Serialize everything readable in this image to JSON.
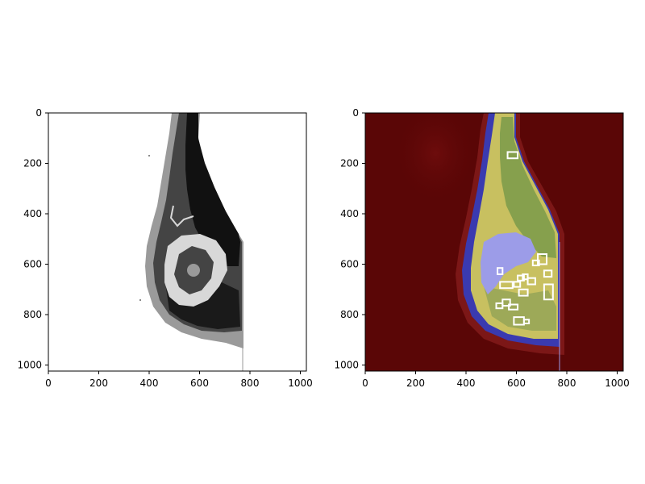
{
  "figure": {
    "panels": [
      {
        "name": "segmentation-map",
        "xaxis": {
          "ticks": [
            "0",
            "200",
            "400",
            "600",
            "800",
            "1000"
          ],
          "range": [
            0,
            1024
          ]
        },
        "yaxis": {
          "ticks": [
            "0",
            "200",
            "400",
            "600",
            "800",
            "1000"
          ],
          "range": [
            0,
            1024
          ],
          "inverted": true
        },
        "colors": {
          "background": "#ffffff",
          "light_gray": "#9a9a9a",
          "dark_gray": "#444444",
          "black": "#111111",
          "pale": "#d8d8d8"
        }
      },
      {
        "name": "heatmap-overlay",
        "xaxis": {
          "ticks": [
            "0",
            "200",
            "400",
            "600",
            "800",
            "1000"
          ],
          "range": [
            0,
            1024
          ]
        },
        "yaxis": {
          "ticks": [
            "0",
            "200",
            "400",
            "600",
            "800",
            "1000"
          ],
          "range": [
            0,
            1024
          ],
          "inverted": true
        },
        "colors": {
          "background": "#5a0606",
          "blue_rim": "#3a3ab0",
          "yellow": "#c8c060",
          "green": "#7a9a4a",
          "lavender": "#9c9ce8",
          "box": "#ffffff"
        },
        "boxes": [
          [
            565,
            155,
            40,
            25
          ],
          [
            685,
            560,
            35,
            40
          ],
          [
            665,
            585,
            25,
            20
          ],
          [
            710,
            625,
            30,
            25
          ],
          [
            605,
            645,
            25,
            20
          ],
          [
            625,
            640,
            20,
            20
          ],
          [
            645,
            655,
            30,
            25
          ],
          [
            525,
            615,
            20,
            25
          ],
          [
            535,
            670,
            50,
            25
          ],
          [
            590,
            670,
            25,
            20
          ],
          [
            610,
            700,
            35,
            25
          ],
          [
            710,
            680,
            35,
            60
          ],
          [
            545,
            740,
            30,
            25
          ],
          [
            520,
            755,
            25,
            20
          ],
          [
            570,
            760,
            35,
            20
          ],
          [
            590,
            810,
            40,
            30
          ],
          [
            630,
            820,
            20,
            15
          ]
        ]
      }
    ]
  }
}
